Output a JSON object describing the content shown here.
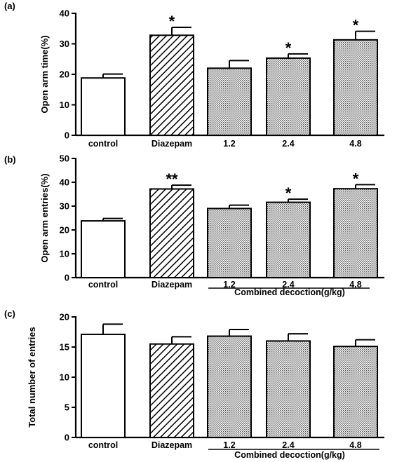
{
  "colors": {
    "stroke": "#000000",
    "fill_control": "#ffffff",
    "fill_diazepam": "hatched",
    "fill_decoction": "dotted"
  },
  "chart_data": [
    {
      "type": "bar",
      "panel_label": "(a)",
      "categories": [
        "control",
        "Diazepam",
        "1.2",
        "2.4",
        "4.8"
      ],
      "values": [
        18.8,
        32.8,
        22.0,
        25.3,
        31.3
      ],
      "errors": [
        1.3,
        2.6,
        2.5,
        1.4,
        2.8
      ],
      "significance": [
        "",
        "*",
        "",
        "*",
        "*"
      ],
      "ylabel": "Open arm time(%)",
      "ylim": [
        0,
        40
      ],
      "yticks": [
        0,
        10,
        20,
        30,
        40
      ],
      "group_label": ""
    },
    {
      "type": "bar",
      "panel_label": "(b)",
      "categories": [
        "control",
        "Diazepam",
        "1.2",
        "2.4",
        "4.8"
      ],
      "values": [
        23.8,
        37.2,
        29.0,
        31.6,
        37.3
      ],
      "errors": [
        1.0,
        1.6,
        1.4,
        1.3,
        1.7
      ],
      "significance": [
        "",
        "**",
        "",
        "*",
        "*"
      ],
      "ylabel": "Open arm entries(%)",
      "ylim": [
        0,
        50
      ],
      "yticks": [
        0,
        10,
        20,
        30,
        40,
        50
      ],
      "group_label": "Combined decoction(g/kg)"
    },
    {
      "type": "bar",
      "panel_label": "(c)",
      "categories": [
        "control",
        "Diazepam",
        "1.2",
        "2.4",
        "4.8"
      ],
      "values": [
        17.1,
        15.5,
        16.8,
        16.0,
        15.1
      ],
      "errors": [
        1.7,
        1.2,
        1.1,
        1.2,
        1.1
      ],
      "significance": [
        "",
        "",
        "",
        "",
        ""
      ],
      "ylabel": "Total number of entries",
      "ylim": [
        0,
        20
      ],
      "yticks": [
        0,
        5,
        10,
        15,
        20
      ],
      "group_label": "Combined decoction(g/kg)"
    }
  ]
}
